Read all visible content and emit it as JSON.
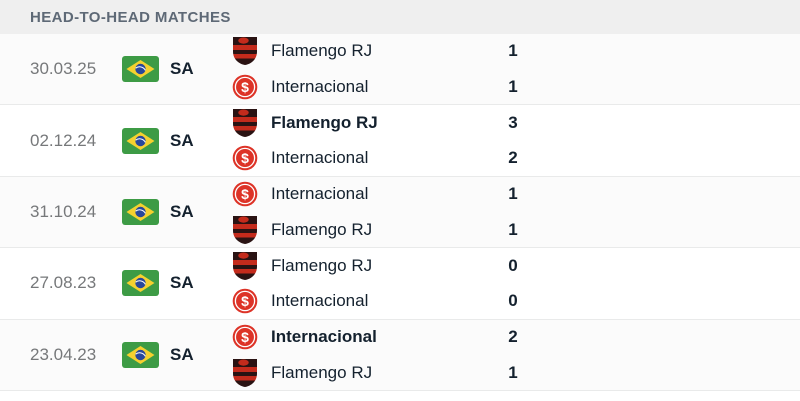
{
  "header": {
    "title": "HEAD-TO-HEAD MATCHES"
  },
  "colors": {
    "header_bg": "#efefef",
    "header_text": "#5e6976",
    "row_border": "#e9eaea",
    "date_text": "#76787a",
    "main_text": "#14212e",
    "flamengo_red": "#c42b1c",
    "flamengo_dark": "#2a1313",
    "inter_red": "#dd3327",
    "flag_green": "#3d9b45",
    "flag_yellow": "#f5d12f",
    "flag_blue": "#29479b"
  },
  "icons": {
    "flag": "brazil-flag-icon",
    "flamengo": "flamengo-crest-icon",
    "internacional": "internacional-crest-icon"
  },
  "matches": [
    {
      "date": "30.03.25",
      "competition": "SA",
      "home": {
        "name": "Flamengo RJ",
        "crest": "flamengo",
        "score": "1",
        "winner": false
      },
      "away": {
        "name": "Internacional",
        "crest": "internacional",
        "score": "1",
        "winner": false
      }
    },
    {
      "date": "02.12.24",
      "competition": "SA",
      "home": {
        "name": "Flamengo RJ",
        "crest": "flamengo",
        "score": "3",
        "winner": true
      },
      "away": {
        "name": "Internacional",
        "crest": "internacional",
        "score": "2",
        "winner": false
      }
    },
    {
      "date": "31.10.24",
      "competition": "SA",
      "home": {
        "name": "Internacional",
        "crest": "internacional",
        "score": "1",
        "winner": false
      },
      "away": {
        "name": "Flamengo RJ",
        "crest": "flamengo",
        "score": "1",
        "winner": false
      }
    },
    {
      "date": "27.08.23",
      "competition": "SA",
      "home": {
        "name": "Flamengo RJ",
        "crest": "flamengo",
        "score": "0",
        "winner": false
      },
      "away": {
        "name": "Internacional",
        "crest": "internacional",
        "score": "0",
        "winner": false
      }
    },
    {
      "date": "23.04.23",
      "competition": "SA",
      "home": {
        "name": "Internacional",
        "crest": "internacional",
        "score": "2",
        "winner": true
      },
      "away": {
        "name": "Flamengo RJ",
        "crest": "flamengo",
        "score": "1",
        "winner": false
      }
    }
  ]
}
